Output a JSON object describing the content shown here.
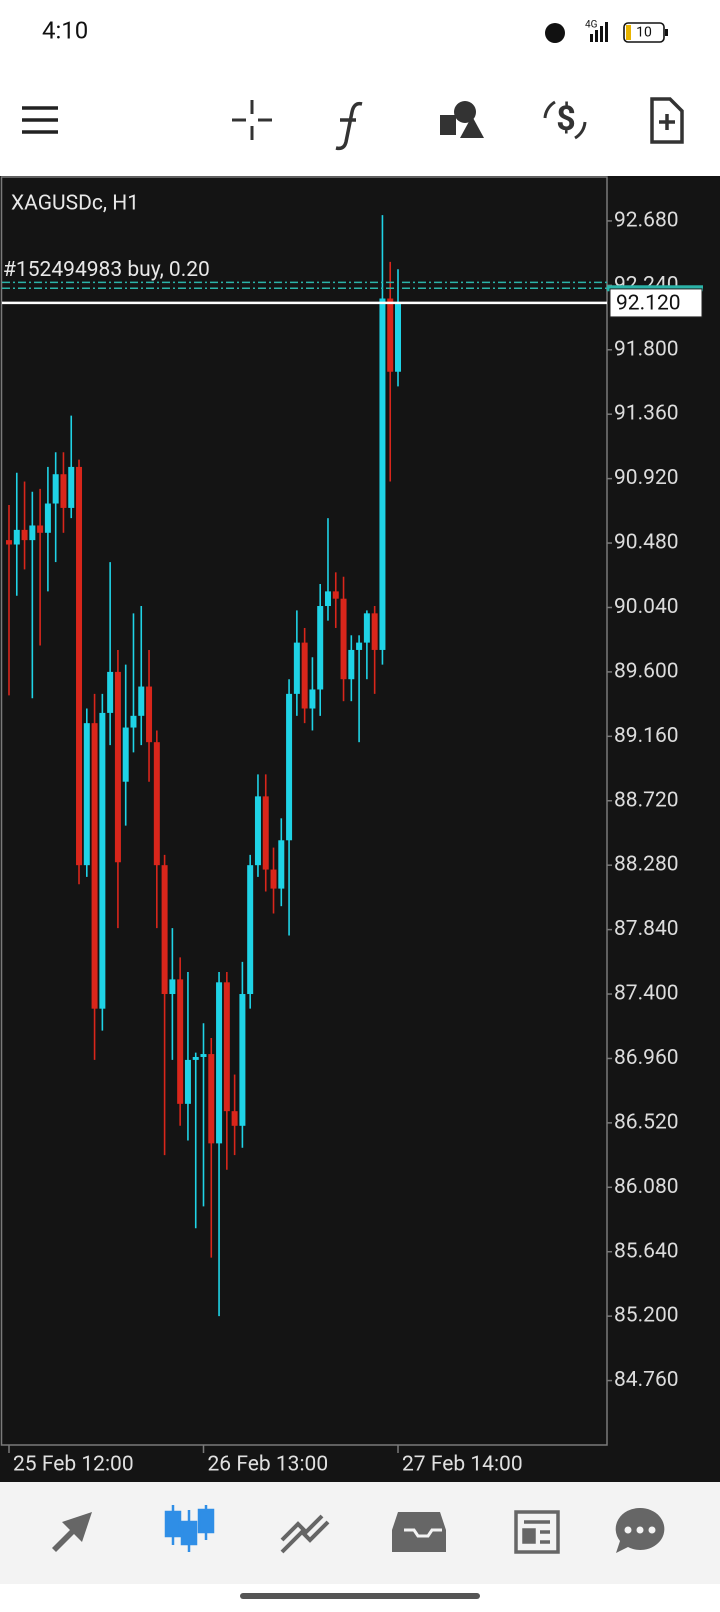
{
  "status": {
    "time": "4:10",
    "battery": "10",
    "network": "4G"
  },
  "chart_data": {
    "type": "candlestick",
    "title": "XAGUSDc, H1",
    "categories": [
      "25 Feb 12:00",
      null,
      null,
      null,
      null,
      null,
      null,
      null,
      null,
      null,
      null,
      null,
      null,
      null,
      null,
      null,
      null,
      null,
      null,
      null,
      null,
      null,
      null,
      null,
      null,
      "26 Feb 13:00",
      null,
      null,
      null,
      null,
      null,
      null,
      null,
      null,
      null,
      null,
      null,
      null,
      null,
      null,
      null,
      null,
      null,
      null,
      null,
      null,
      null,
      null,
      null,
      null,
      "27 Feb 14:00"
    ],
    "open": [
      90.5,
      90.47,
      90.57,
      90.5,
      90.6,
      90.55,
      90.75,
      90.95,
      90.72,
      91.0,
      88.28,
      89.25,
      87.3,
      89.32,
      89.6,
      88.85,
      89.22,
      89.3,
      89.5,
      89.12,
      88.28,
      87.4,
      87.5,
      86.65,
      86.95,
      86.97,
      86.99,
      86.38,
      87.48,
      86.6,
      86.5,
      87.4,
      88.28,
      88.75,
      88.25,
      88.12,
      88.45,
      89.45,
      89.8,
      89.35,
      89.48,
      90.05,
      90.15,
      90.1,
      89.55,
      89.75,
      89.8,
      90.0,
      89.75,
      92.15,
      91.65
    ],
    "high": [
      90.74,
      90.96,
      90.9,
      90.83,
      90.85,
      91.0,
      91.1,
      91.1,
      91.35,
      91.05,
      89.35,
      89.45,
      89.45,
      90.35,
      89.75,
      89.65,
      90.0,
      90.05,
      89.75,
      89.2,
      88.35,
      87.85,
      87.65,
      87.55,
      87.0,
      87.2,
      87.1,
      87.55,
      87.55,
      86.85,
      87.62,
      88.35,
      88.9,
      88.9,
      88.4,
      88.6,
      89.55,
      90.02,
      89.9,
      89.7,
      90.2,
      90.65,
      90.28,
      90.25,
      89.85,
      89.85,
      90.02,
      90.05,
      92.72,
      92.4,
      92.35
    ],
    "low": [
      89.44,
      90.12,
      90.3,
      89.42,
      89.78,
      90.15,
      90.35,
      90.55,
      90.65,
      88.15,
      88.2,
      86.95,
      87.15,
      89.1,
      87.85,
      88.55,
      89.05,
      89.1,
      88.85,
      87.85,
      86.3,
      86.95,
      86.5,
      86.4,
      85.8,
      85.95,
      85.6,
      85.2,
      86.2,
      86.3,
      86.35,
      87.3,
      88.2,
      88.1,
      87.95,
      88.0,
      87.8,
      89.3,
      89.25,
      89.2,
      89.3,
      89.95,
      89.9,
      89.4,
      89.4,
      89.12,
      89.55,
      89.45,
      89.65,
      90.9,
      91.55
    ],
    "close": [
      90.47,
      90.57,
      90.5,
      90.6,
      90.55,
      90.75,
      90.95,
      90.72,
      91.0,
      88.28,
      89.25,
      87.3,
      89.32,
      89.6,
      88.3,
      89.22,
      89.3,
      89.5,
      89.12,
      88.28,
      87.4,
      87.5,
      86.65,
      86.95,
      86.97,
      86.99,
      86.38,
      87.48,
      86.6,
      86.5,
      87.4,
      88.28,
      88.75,
      88.25,
      88.12,
      88.45,
      89.45,
      89.8,
      89.35,
      89.48,
      90.05,
      90.15,
      90.1,
      89.55,
      89.75,
      89.8,
      90.0,
      89.75,
      92.15,
      91.65,
      92.12
    ],
    "up_color": "#1fd3e6",
    "down_color": "#d9261b",
    "ylim": [
      84.32,
      92.98
    ],
    "yticks": [
      {
        "value": 92.68,
        "label": "92.680"
      },
      {
        "value": 92.24,
        "label": "92.240"
      },
      {
        "value": 91.8,
        "label": "91.800"
      },
      {
        "value": 91.36,
        "label": "91.360"
      },
      {
        "value": 90.92,
        "label": "90.920"
      },
      {
        "value": 90.48,
        "label": "90.480"
      },
      {
        "value": 90.04,
        "label": "90.040"
      },
      {
        "value": 89.6,
        "label": "89.600"
      },
      {
        "value": 89.16,
        "label": "89.160"
      },
      {
        "value": 88.72,
        "label": "88.720"
      },
      {
        "value": 88.28,
        "label": "88.280"
      },
      {
        "value": 87.84,
        "label": "87.840"
      },
      {
        "value": 87.4,
        "label": "87.400"
      },
      {
        "value": 86.96,
        "label": "86.960"
      },
      {
        "value": 86.52,
        "label": "86.520"
      },
      {
        "value": 86.08,
        "label": "86.080"
      },
      {
        "value": 85.64,
        "label": "85.640"
      },
      {
        "value": 85.2,
        "label": "85.200"
      },
      {
        "value": 84.76,
        "label": "84.760"
      }
    ],
    "bid": {
      "value": 92.12,
      "label": "92.120"
    },
    "ask": 92.22,
    "order": {
      "label": "#152494983 buy, 0.20",
      "price": 92.26
    },
    "grid": false
  }
}
